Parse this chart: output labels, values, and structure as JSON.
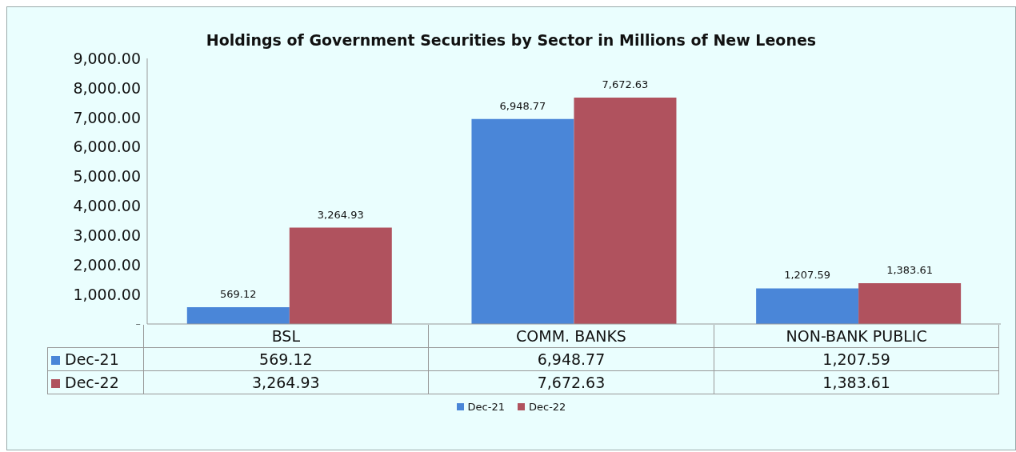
{
  "chart_data": {
    "type": "bar",
    "title": "Holdings of Government Securities by Sector in Millions of New Leones",
    "categories": [
      "BSL",
      "COMM. BANKS",
      "NON-BANK PUBLIC"
    ],
    "series": [
      {
        "name": "Dec-21",
        "color": "#4a86d8",
        "values": [
          569.12,
          6948.77,
          1207.59
        ],
        "value_labels": [
          "569.12",
          "6,948.77",
          "1,207.59"
        ]
      },
      {
        "name": "Dec-22",
        "color": "#b0525e",
        "values": [
          3264.93,
          7672.63,
          1383.61
        ],
        "value_labels": [
          "3,264.93",
          "7,672.63",
          "1,383.61"
        ]
      }
    ],
    "ylim": [
      0,
      9000
    ],
    "yticks": [
      {
        "value": 0,
        "label": "-"
      },
      {
        "value": 1000,
        "label": "1,000.00"
      },
      {
        "value": 2000,
        "label": "2,000.00"
      },
      {
        "value": 3000,
        "label": "3,000.00"
      },
      {
        "value": 4000,
        "label": "4,000.00"
      },
      {
        "value": 5000,
        "label": "5,000.00"
      },
      {
        "value": 6000,
        "label": "6,000.00"
      },
      {
        "value": 7000,
        "label": "7,000.00"
      },
      {
        "value": 8000,
        "label": "8,000.00"
      },
      {
        "value": 9000,
        "label": "9,000.00"
      }
    ],
    "grid": false,
    "legend": "bottom"
  }
}
